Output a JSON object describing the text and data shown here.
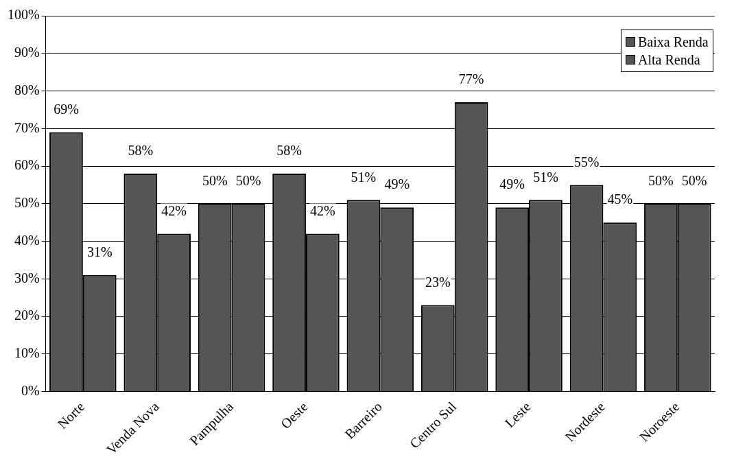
{
  "chart_data": {
    "type": "bar",
    "categories": [
      "Norte",
      "Venda Nova",
      "Pampulha",
      "Oeste",
      "Barreiro",
      "Centro Sul",
      "Leste",
      "Nordeste",
      "Noroeste"
    ],
    "series": [
      {
        "name": "Baixa Renda",
        "color": "#555555",
        "values": [
          69,
          58,
          50,
          58,
          51,
          23,
          49,
          55,
          50
        ],
        "value_labels": [
          "69%",
          "58%",
          "50%",
          "58%",
          "51%",
          "23%",
          "49%",
          "55%",
          "50%"
        ]
      },
      {
        "name": "Alta Renda",
        "color": "#555555",
        "values": [
          31,
          42,
          50,
          42,
          49,
          77,
          51,
          45,
          50
        ],
        "value_labels": [
          "31%",
          "42%",
          "50%",
          "42%",
          "49%",
          "77%",
          "51%",
          "45%",
          "50%"
        ]
      }
    ],
    "ylim": [
      0,
      100
    ],
    "yticks": [
      {
        "value": 0,
        "label": "0%"
      },
      {
        "value": 10,
        "label": "10%"
      },
      {
        "value": 20,
        "label": "20%"
      },
      {
        "value": 30,
        "label": "30%"
      },
      {
        "value": 40,
        "label": "40%"
      },
      {
        "value": 50,
        "label": "50%"
      },
      {
        "value": 60,
        "label": "60%"
      },
      {
        "value": 70,
        "label": "70%"
      },
      {
        "value": 80,
        "label": "80%"
      },
      {
        "value": 90,
        "label": "90%"
      },
      {
        "value": 100,
        "label": "100%"
      }
    ],
    "grid": "y",
    "legend": "top right"
  }
}
